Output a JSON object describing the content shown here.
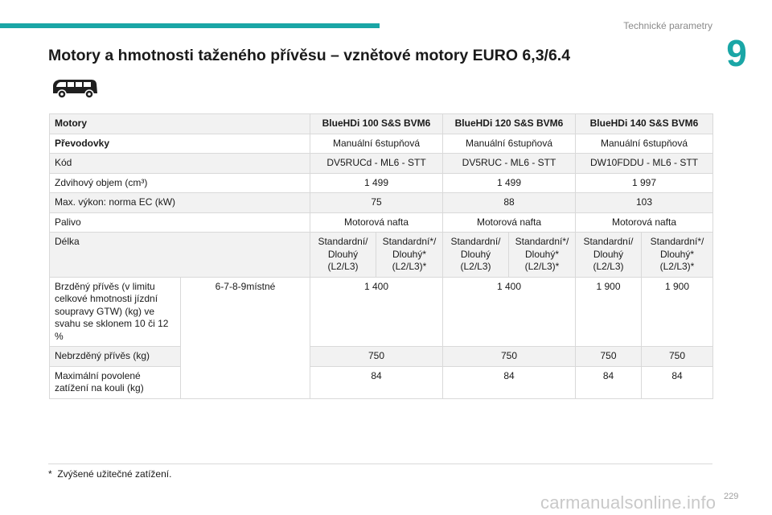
{
  "header": {
    "section": "Technické parametry",
    "chapter": "9",
    "accent_color": "#1aa6a6"
  },
  "title": "Motory a hmotnosti taženého přívěsu – vznětové motory EURO 6,3/6.4",
  "icon": "van-icon",
  "table": {
    "label_motory": "Motory",
    "engines": [
      "BlueHDi 100 S&S BVM6",
      "BlueHDi 120 S&S BVM6",
      "BlueHDi 140 S&S BVM6"
    ],
    "label_prevodovky": "Převodovky",
    "gearboxes": [
      "Manuální 6stupňová",
      "Manuální 6stupňová",
      "Manuální 6stupňová"
    ],
    "label_kod": "Kód",
    "codes": [
      "DV5RUCd - ML6 - STT",
      "DV5RUC - ML6 - STT",
      "DW10FDDU - ML6 - STT"
    ],
    "label_objem": "Zdvihový objem (cm³)",
    "displacements": [
      "1 499",
      "1 499",
      "1 997"
    ],
    "label_vykon": "Max. výkon: norma EC (kW)",
    "powers": [
      "75",
      "88",
      "103"
    ],
    "label_palivo": "Palivo",
    "fuels": [
      "Motorová nafta",
      "Motorová nafta",
      "Motorová nafta"
    ],
    "label_delka": "Délka",
    "lengths": [
      "Standardní/ Dlouhý (L2/L3)",
      "Standardní*/ Dlouhý* (L2/L3)*",
      "Standardní/ Dlouhý (L2/L3)",
      "Standardní*/ Dlouhý* (L2/L3)*",
      "Standardní/ Dlouhý (L2/L3)",
      "Standardní*/ Dlouhý* (L2/L3)*"
    ],
    "label_brzdeny": "Brzděný přívěs (v limitu celkové hmotnosti jízdní soupravy GTW) (kg) ve svahu se sklonem 10 či 12 %",
    "seats": "6-7-8-9místné",
    "braked": [
      "1 400",
      "1 400",
      "1 900",
      "1 900"
    ],
    "label_nebrzdeny": "Nebrzděný přívěs (kg)",
    "unbraked": [
      "750",
      "750",
      "750",
      "750"
    ],
    "label_kouli": "Maximální povolené zatížení na kouli (kg)",
    "ball_load": [
      "84",
      "84",
      "84",
      "84"
    ]
  },
  "footnote_mark": "*",
  "footnote": "Zvýšené užitečné zatížení.",
  "page_number": "229",
  "watermark": "carmanualsonline.info"
}
